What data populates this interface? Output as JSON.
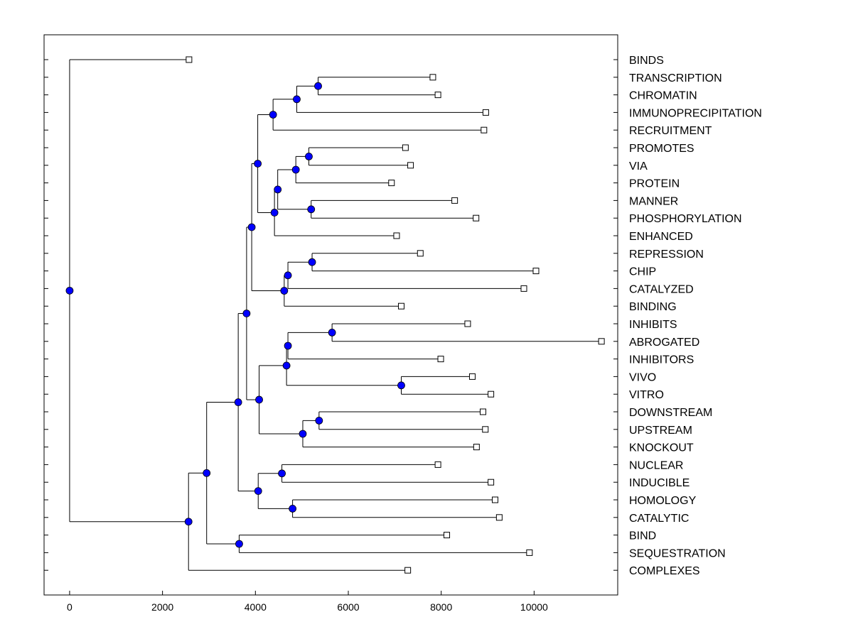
{
  "chart_data": {
    "type": "dendrogram",
    "xlim": [
      -550,
      11800
    ],
    "x_ticks": [
      0,
      2000,
      4000,
      6000,
      8000,
      10000
    ],
    "x_tick_labels": [
      "0",
      "2000",
      "4000",
      "6000",
      "8000",
      "10000"
    ],
    "grid": false,
    "colors": {
      "node_fill": "#0000ff",
      "line": "#000000",
      "leaf_fill": "#ffffff"
    },
    "leaves": [
      {
        "label": "BINDS",
        "x": 2570
      },
      {
        "label": "TRANSCRIPTION",
        "x": 7820
      },
      {
        "label": "CHROMATIN",
        "x": 7930
      },
      {
        "label": "IMMUNOPRECIPITATION",
        "x": 8960
      },
      {
        "label": "RECRUITMENT",
        "x": 8920
      },
      {
        "label": "PROMOTES",
        "x": 7230
      },
      {
        "label": "VIA",
        "x": 7340
      },
      {
        "label": "PROTEIN",
        "x": 6930
      },
      {
        "label": "MANNER",
        "x": 8290
      },
      {
        "label": "PHOSPHORYLATION",
        "x": 8750
      },
      {
        "label": "ENHANCED",
        "x": 7040
      },
      {
        "label": "REPRESSION",
        "x": 7550
      },
      {
        "label": "CHIP",
        "x": 10040
      },
      {
        "label": "CATALYZED",
        "x": 9780
      },
      {
        "label": "BINDING",
        "x": 7140
      },
      {
        "label": "INHIBITS",
        "x": 8570
      },
      {
        "label": "ABROGATED",
        "x": 11450
      },
      {
        "label": "INHIBITORS",
        "x": 7990
      },
      {
        "label": "VIVO",
        "x": 8670
      },
      {
        "label": "VITRO",
        "x": 9070
      },
      {
        "label": "DOWNSTREAM",
        "x": 8900
      },
      {
        "label": "UPSTREAM",
        "x": 8950
      },
      {
        "label": "KNOCKOUT",
        "x": 8760
      },
      {
        "label": "NUCLEAR",
        "x": 7930
      },
      {
        "label": "INDUCIBLE",
        "x": 9070
      },
      {
        "label": "HOMOLOGY",
        "x": 9160
      },
      {
        "label": "CATALYTIC",
        "x": 9250
      },
      {
        "label": "BIND",
        "x": 8120
      },
      {
        "label": "SEQUESTRATION",
        "x": 9900
      },
      {
        "label": "COMPLEXES",
        "x": 7280
      }
    ],
    "merges": [
      {
        "id": "n1",
        "x": 5350,
        "children": [
          1,
          2
        ]
      },
      {
        "id": "n2",
        "x": 4890,
        "children": [
          "n1",
          3
        ]
      },
      {
        "id": "n3",
        "x": 4380,
        "children": [
          "n2",
          4
        ]
      },
      {
        "id": "n4",
        "x": 5150,
        "children": [
          5,
          6
        ]
      },
      {
        "id": "n5",
        "x": 4870,
        "children": [
          "n4",
          7
        ]
      },
      {
        "id": "n6",
        "x": 5200,
        "children": [
          8,
          9
        ]
      },
      {
        "id": "n7",
        "x": 4480,
        "children": [
          "n5",
          "n6"
        ]
      },
      {
        "id": "n8",
        "x": 4410,
        "children": [
          "n7",
          10
        ]
      },
      {
        "id": "n9",
        "x": 4050,
        "children": [
          "n3",
          "n8"
        ]
      },
      {
        "id": "n10",
        "x": 5220,
        "children": [
          11,
          12
        ]
      },
      {
        "id": "n11",
        "x": 4700,
        "children": [
          "n10",
          13
        ]
      },
      {
        "id": "n12",
        "x": 4620,
        "children": [
          "n11",
          14
        ]
      },
      {
        "id": "n13",
        "x": 3920,
        "children": [
          "n9",
          "n12"
        ]
      },
      {
        "id": "n14",
        "x": 5650,
        "children": [
          15,
          16
        ]
      },
      {
        "id": "n15",
        "x": 4700,
        "children": [
          "n14",
          17
        ]
      },
      {
        "id": "n16",
        "x": 7140,
        "children": [
          18,
          19
        ]
      },
      {
        "id": "n17",
        "x": 4670,
        "children": [
          "n15",
          "n16"
        ]
      },
      {
        "id": "n18",
        "x": 5370,
        "children": [
          20,
          21
        ]
      },
      {
        "id": "n19",
        "x": 5020,
        "children": [
          "n18",
          22
        ]
      },
      {
        "id": "n20",
        "x": 4080,
        "children": [
          "n17",
          "n19"
        ]
      },
      {
        "id": "n21",
        "x": 3810,
        "children": [
          "n13",
          "n20"
        ]
      },
      {
        "id": "n22",
        "x": 4570,
        "children": [
          23,
          24
        ]
      },
      {
        "id": "n23",
        "x": 4800,
        "children": [
          25,
          26
        ]
      },
      {
        "id": "n24",
        "x": 4060,
        "children": [
          "n22",
          "n23"
        ]
      },
      {
        "id": "n25",
        "x": 3630,
        "children": [
          "n21",
          "n24"
        ]
      },
      {
        "id": "n26",
        "x": 3650,
        "children": [
          27,
          28
        ]
      },
      {
        "id": "n27",
        "x": 2950,
        "children": [
          "n25",
          "n26"
        ]
      },
      {
        "id": "n28",
        "x": 2560,
        "children": [
          "n27",
          29
        ]
      },
      {
        "id": "n29",
        "x": 0,
        "children": [
          0,
          "n28"
        ]
      }
    ]
  }
}
